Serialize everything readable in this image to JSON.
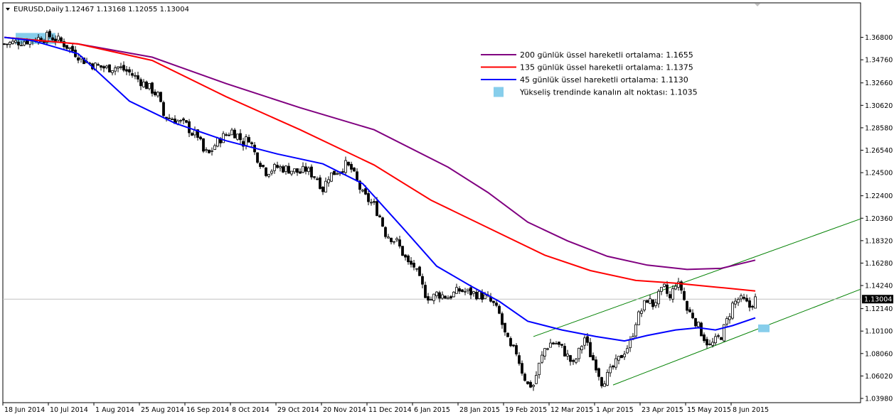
{
  "header": {
    "symbol": "EURUSD,Daily",
    "ohlc": "1.12467 1.13168 1.12055 1.13004"
  },
  "price_marker": "1.13004",
  "legend": [
    {
      "label": "200 günlük üssel hareketli ortalama: 1.1655",
      "color": "#800080"
    },
    {
      "label": "135 günlük üssel hareketli ortalama: 1.1375",
      "color": "#ff0000"
    },
    {
      "label": "45 günlük üssel hareketli ortalama: 1.1130",
      "color": "#0000ff"
    },
    {
      "label": "Yükseliş trendinde kanalın alt noktası: 1.1035",
      "color": "#87ceeb"
    }
  ],
  "chart_data": {
    "type": "candlestick",
    "ylim": [
      1.0398,
      1.38
    ],
    "y_ticks": [
      "1.36800",
      "1.34760",
      "1.32660",
      "1.30620",
      "1.28580",
      "1.26540",
      "1.24500",
      "1.22400",
      "1.20360",
      "1.18320",
      "1.16280",
      "1.14240",
      "1.12140",
      "1.10100",
      "1.08060",
      "1.06020",
      "1.03980"
    ],
    "x_ticks": [
      "18 Jun 2014",
      "10 Jul 2014",
      "1 Aug 2014",
      "25 Aug 2014",
      "16 Sep 2014",
      "8 Oct 2014",
      "29 Oct 2014",
      "20 Nov 2014",
      "11 Dec 2014",
      "6 Jan 2015",
      "28 Jan 2015",
      "19 Feb 2015",
      "12 Mar 2015",
      "1 Apr 2015",
      "23 Apr 2015",
      "15 May 2015",
      "8 Jun 2015"
    ],
    "last_price": 1.13004,
    "price_path": [
      [
        0,
        1.362
      ],
      [
        8,
        1.365
      ],
      [
        16,
        1.369
      ],
      [
        20,
        1.364
      ],
      [
        24,
        1.356
      ],
      [
        28,
        1.347
      ],
      [
        32,
        1.342
      ],
      [
        36,
        1.34
      ],
      [
        40,
        1.341
      ],
      [
        44,
        1.336
      ],
      [
        48,
        1.328
      ],
      [
        52,
        1.32
      ],
      [
        54,
        1.315
      ],
      [
        56,
        1.297
      ],
      [
        60,
        1.293
      ],
      [
        64,
        1.288
      ],
      [
        66,
        1.281
      ],
      [
        68,
        1.279
      ],
      [
        70,
        1.264
      ],
      [
        72,
        1.262
      ],
      [
        74,
        1.27
      ],
      [
        76,
        1.276
      ],
      [
        80,
        1.283
      ],
      [
        82,
        1.279
      ],
      [
        84,
        1.272
      ],
      [
        86,
        1.277
      ],
      [
        88,
        1.263
      ],
      [
        92,
        1.246
      ],
      [
        96,
        1.25
      ],
      [
        100,
        1.248
      ],
      [
        104,
        1.245
      ],
      [
        106,
        1.248
      ],
      [
        110,
        1.24
      ],
      [
        112,
        1.23
      ],
      [
        114,
        1.242
      ],
      [
        118,
        1.248
      ],
      [
        120,
        1.252
      ],
      [
        122,
        1.248
      ],
      [
        126,
        1.225
      ],
      [
        128,
        1.22
      ],
      [
        130,
        1.215
      ],
      [
        132,
        1.205
      ],
      [
        134,
        1.19
      ],
      [
        138,
        1.182
      ],
      [
        142,
        1.162
      ],
      [
        144,
        1.16
      ],
      [
        146,
        1.147
      ],
      [
        148,
        1.135
      ],
      [
        150,
        1.13
      ],
      [
        152,
        1.135
      ],
      [
        156,
        1.132
      ],
      [
        160,
        1.138
      ],
      [
        164,
        1.136
      ],
      [
        168,
        1.133
      ],
      [
        170,
        1.13
      ],
      [
        172,
        1.125
      ],
      [
        174,
        1.116
      ],
      [
        176,
        1.098
      ],
      [
        178,
        1.085
      ],
      [
        180,
        1.082
      ],
      [
        182,
        1.065
      ],
      [
        184,
        1.052
      ],
      [
        186,
        1.052
      ],
      [
        188,
        1.07
      ],
      [
        190,
        1.085
      ],
      [
        192,
        1.09
      ],
      [
        194,
        1.09
      ],
      [
        196,
        1.085
      ],
      [
        198,
        1.078
      ],
      [
        200,
        1.07
      ],
      [
        202,
        1.082
      ],
      [
        204,
        1.095
      ],
      [
        206,
        1.08
      ],
      [
        208,
        1.07
      ],
      [
        210,
        1.055
      ],
      [
        212,
        1.06
      ],
      [
        214,
        1.068
      ],
      [
        216,
        1.075
      ],
      [
        218,
        1.083
      ],
      [
        220,
        1.09
      ],
      [
        222,
        1.11
      ],
      [
        224,
        1.12
      ],
      [
        226,
        1.13
      ],
      [
        228,
        1.125
      ],
      [
        230,
        1.133
      ],
      [
        232,
        1.14
      ],
      [
        234,
        1.13
      ],
      [
        236,
        1.145
      ],
      [
        238,
        1.139
      ],
      [
        240,
        1.12
      ],
      [
        242,
        1.115
      ],
      [
        244,
        1.105
      ],
      [
        246,
        1.095
      ],
      [
        248,
        1.087
      ],
      [
        250,
        1.092
      ],
      [
        252,
        1.097
      ],
      [
        254,
        1.11
      ],
      [
        256,
        1.125
      ],
      [
        258,
        1.13
      ],
      [
        260,
        1.128
      ],
      [
        262,
        1.123
      ],
      [
        264,
        1.13
      ]
    ],
    "series": [
      {
        "name": "200 günlük üssel hareketli ortalama",
        "color": "#800080",
        "end_value": 1.1655,
        "points": [
          [
            0,
            1.368
          ],
          [
            26,
            1.362
          ],
          [
            52,
            1.35
          ],
          [
            78,
            1.326
          ],
          [
            104,
            1.304
          ],
          [
            130,
            1.284
          ],
          [
            156,
            1.25
          ],
          [
            170,
            1.227
          ],
          [
            184,
            1.2
          ],
          [
            198,
            1.183
          ],
          [
            212,
            1.169
          ],
          [
            226,
            1.161
          ],
          [
            240,
            1.157
          ],
          [
            252,
            1.158
          ],
          [
            264,
            1.1655
          ]
        ]
      },
      {
        "name": "135 günlük üssel hareketli ortalama",
        "color": "#ff0000",
        "end_value": 1.1375,
        "points": [
          [
            0,
            1.368
          ],
          [
            26,
            1.362
          ],
          [
            52,
            1.347
          ],
          [
            78,
            1.314
          ],
          [
            104,
            1.284
          ],
          [
            130,
            1.252
          ],
          [
            150,
            1.22
          ],
          [
            170,
            1.195
          ],
          [
            190,
            1.17
          ],
          [
            206,
            1.156
          ],
          [
            222,
            1.147
          ],
          [
            236,
            1.1445
          ],
          [
            250,
            1.141
          ],
          [
            264,
            1.1375
          ]
        ]
      },
      {
        "name": "45 günlük üssel hareketli ortalama",
        "color": "#0000ff",
        "end_value": 1.113,
        "points": [
          [
            0,
            1.368
          ],
          [
            10,
            1.365
          ],
          [
            26,
            1.353
          ],
          [
            44,
            1.31
          ],
          [
            60,
            1.29
          ],
          [
            78,
            1.274
          ],
          [
            96,
            1.262
          ],
          [
            112,
            1.253
          ],
          [
            126,
            1.235
          ],
          [
            140,
            1.195
          ],
          [
            152,
            1.16
          ],
          [
            164,
            1.142
          ],
          [
            174,
            1.128
          ],
          [
            184,
            1.11
          ],
          [
            196,
            1.102
          ],
          [
            208,
            1.096
          ],
          [
            218,
            1.092
          ],
          [
            226,
            1.097
          ],
          [
            236,
            1.102
          ],
          [
            244,
            1.104
          ],
          [
            250,
            1.102
          ],
          [
            256,
            1.106
          ],
          [
            264,
            1.113
          ]
        ]
      }
    ],
    "channel_lines": [
      {
        "from": [
          186,
          1.096
        ],
        "to": [
          301,
          1.203
        ]
      },
      {
        "from": [
          214,
          1.052
        ],
        "to": [
          301,
          1.139
        ]
      }
    ],
    "markers": [
      {
        "type": "rect",
        "color": "#87ceeb",
        "x": [
          4,
          18
        ],
        "y": [
          1.362,
          1.372
        ]
      },
      {
        "type": "rect",
        "color": "#87ceeb",
        "x": [
          265,
          269
        ],
        "y": [
          1.1,
          1.107
        ]
      }
    ],
    "grid": false
  }
}
